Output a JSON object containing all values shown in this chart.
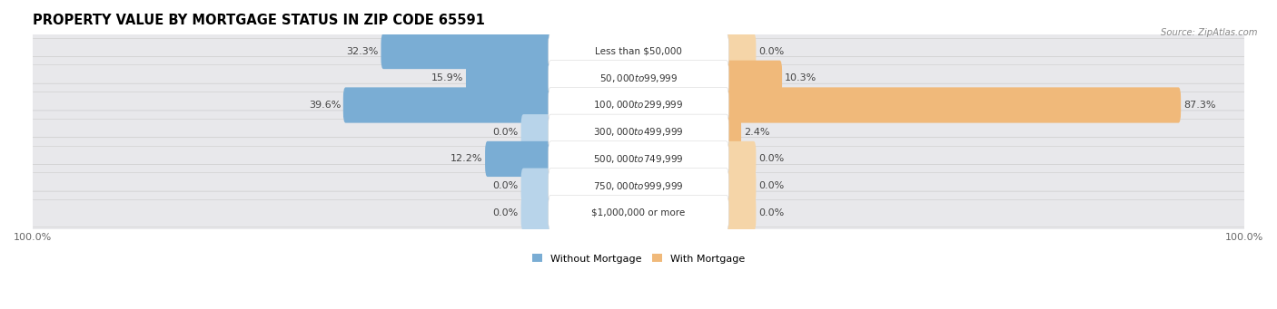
{
  "title": "PROPERTY VALUE BY MORTGAGE STATUS IN ZIP CODE 65591",
  "source": "Source: ZipAtlas.com",
  "categories": [
    "Less than $50,000",
    "$50,000 to $99,999",
    "$100,000 to $299,999",
    "$300,000 to $499,999",
    "$500,000 to $749,999",
    "$750,000 to $999,999",
    "$1,000,000 or more"
  ],
  "without_mortgage": [
    32.3,
    15.9,
    39.6,
    0.0,
    12.2,
    0.0,
    0.0
  ],
  "with_mortgage": [
    0.0,
    10.3,
    87.3,
    2.4,
    0.0,
    0.0,
    0.0
  ],
  "color_without": "#7aadd4",
  "color_with": "#f0b97a",
  "color_without_zero": "#b8d4ea",
  "color_with_zero": "#f5d5a8",
  "row_bg": "#e8e8eb",
  "legend_without": "Without Mortgage",
  "legend_with": "With Mortgage",
  "bar_height": 0.52,
  "title_fontsize": 10.5,
  "label_fontsize": 8.0,
  "tick_fontsize": 8.0,
  "cat_fontsize": 7.5
}
